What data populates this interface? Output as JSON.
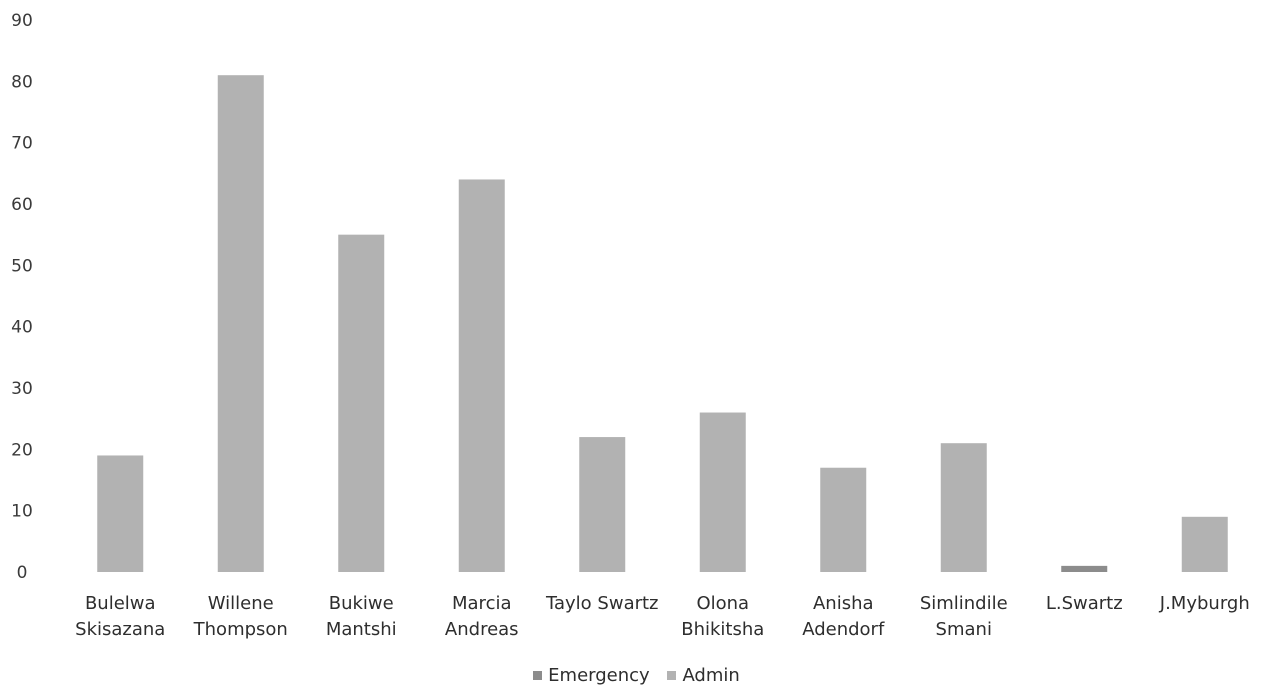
{
  "chart_data": {
    "type": "bar",
    "title": "",
    "xlabel": "",
    "ylabel": "",
    "ylim": [
      0,
      90
    ],
    "yticks": [
      0,
      10,
      20,
      30,
      40,
      50,
      60,
      70,
      80,
      90
    ],
    "grid": false,
    "legend_position": "bottom",
    "categories": [
      [
        "Bulelwa",
        "Skisazana"
      ],
      [
        "Willene",
        "Thompson"
      ],
      [
        "Bukiwe",
        "Mantshi"
      ],
      [
        "Marcia",
        "Andreas"
      ],
      [
        "Taylo Swartz"
      ],
      [
        "Olona",
        "Bhikitsha"
      ],
      [
        "Anisha",
        "Adendorf"
      ],
      [
        "Simlindile",
        "Smani"
      ],
      [
        "L.Swartz"
      ],
      [
        "J.Myburgh"
      ]
    ],
    "series": [
      {
        "name": "Emergency",
        "color": "#8c8c8c",
        "values": [
          0,
          0,
          0,
          0,
          0,
          0,
          0,
          0,
          1,
          0
        ]
      },
      {
        "name": "Admin",
        "color": "#b2b2b2",
        "values": [
          19,
          81,
          55,
          64,
          22,
          26,
          17,
          21,
          0,
          9
        ]
      }
    ]
  }
}
